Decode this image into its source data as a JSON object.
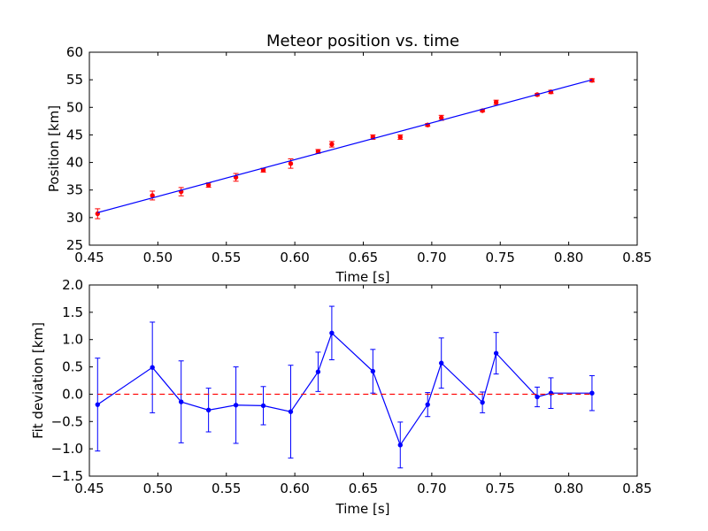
{
  "chart_data": [
    {
      "type": "scatter",
      "title": "Meteor position vs. time",
      "xlabel": "Time [s]",
      "ylabel": "Position [km]",
      "xlim": [
        0.45,
        0.85
      ],
      "ylim": [
        25,
        60
      ],
      "xticks": [
        "0.45",
        "0.50",
        "0.55",
        "0.60",
        "0.65",
        "0.70",
        "0.75",
        "0.80",
        "0.85"
      ],
      "yticks": [
        "25",
        "30",
        "35",
        "40",
        "45",
        "50",
        "55",
        "60"
      ],
      "grid": false,
      "colors": {
        "points": "#ff0000",
        "fit": "#0000ff"
      },
      "series": [
        {
          "kind": "scatter-errorbar",
          "x": [
            0.456,
            0.496,
            0.517,
            0.537,
            0.557,
            0.577,
            0.597,
            0.617,
            0.627,
            0.657,
            0.677,
            0.697,
            0.707,
            0.737,
            0.747,
            0.777,
            0.787,
            0.817
          ],
          "y": [
            30.7,
            34.0,
            34.7,
            35.9,
            37.3,
            38.6,
            39.8,
            42.0,
            43.3,
            44.6,
            44.6,
            46.8,
            48.1,
            49.4,
            50.9,
            52.3,
            52.8,
            54.9
          ],
          "yerr": [
            0.9,
            0.8,
            0.75,
            0.4,
            0.7,
            0.35,
            0.85,
            0.35,
            0.5,
            0.4,
            0.4,
            0.25,
            0.45,
            0.2,
            0.4,
            0.2,
            0.3,
            0.3
          ]
        },
        {
          "kind": "line",
          "x": [
            0.456,
            0.817
          ],
          "y": [
            30.9,
            55.0
          ]
        }
      ]
    },
    {
      "type": "line",
      "xlabel": "Time [s]",
      "ylabel": "Fit deviation [km]",
      "xlim": [
        0.45,
        0.85
      ],
      "ylim": [
        -1.5,
        2.0
      ],
      "xticks": [
        "0.45",
        "0.50",
        "0.55",
        "0.60",
        "0.65",
        "0.70",
        "0.75",
        "0.80",
        "0.85"
      ],
      "yticks": [
        "−1.5",
        "−1.0",
        "−0.5",
        "0.0",
        "0.5",
        "1.0",
        "1.5",
        "2.0"
      ],
      "grid": false,
      "colors": {
        "line": "#0000ff",
        "zero_line": "#ff0000"
      },
      "series": [
        {
          "kind": "line-errorbar",
          "x": [
            0.456,
            0.496,
            0.517,
            0.537,
            0.557,
            0.577,
            0.597,
            0.617,
            0.627,
            0.657,
            0.677,
            0.697,
            0.707,
            0.737,
            0.747,
            0.777,
            0.787,
            0.817
          ],
          "y": [
            -0.19,
            0.49,
            -0.14,
            -0.29,
            -0.2,
            -0.21,
            -0.32,
            0.41,
            1.12,
            0.42,
            -0.93,
            -0.19,
            0.57,
            -0.15,
            0.75,
            -0.05,
            0.02,
            0.02
          ],
          "yerr": [
            0.85,
            0.83,
            0.75,
            0.4,
            0.7,
            0.35,
            0.85,
            0.36,
            0.49,
            0.4,
            0.42,
            0.22,
            0.46,
            0.19,
            0.38,
            0.18,
            0.28,
            0.32
          ]
        },
        {
          "kind": "hline-dashed",
          "x": [
            0.456,
            0.817
          ],
          "y": [
            0.0,
            0.0
          ]
        }
      ]
    }
  ]
}
